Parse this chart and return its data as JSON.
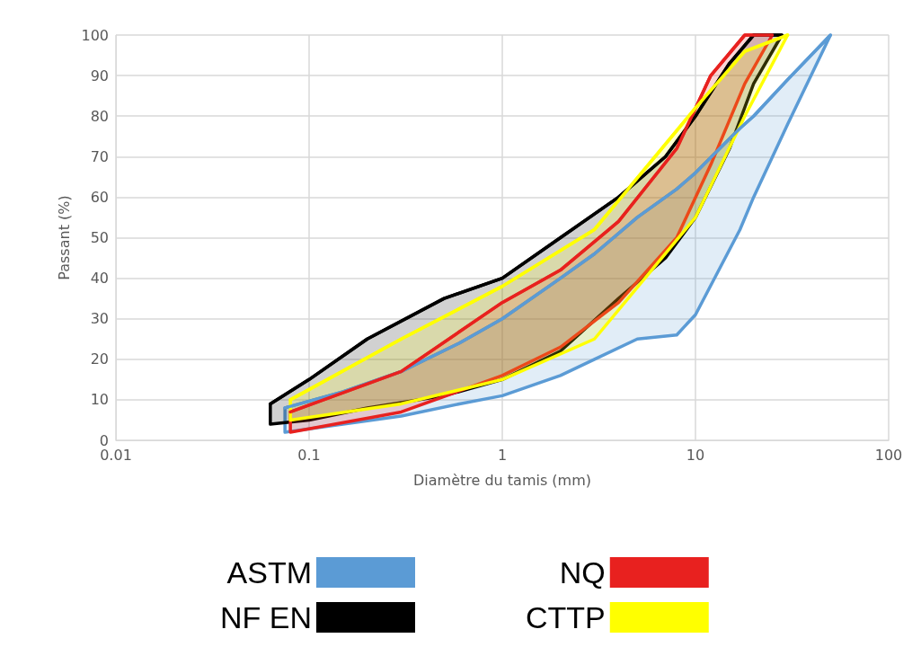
{
  "chart_data": {
    "type": "line",
    "xlabel": "Diamètre du tamis (mm)",
    "ylabel": "Passant (%)",
    "log": "x",
    "xlim": [
      0.01,
      100
    ],
    "xticks": [
      0.01,
      0.1,
      1,
      10,
      100
    ],
    "ylim": [
      0,
      100
    ],
    "yticks": [
      0,
      10,
      20,
      30,
      40,
      50,
      60,
      70,
      80,
      90,
      100
    ],
    "grid": true,
    "legend": "bottom",
    "marker": "none",
    "series": [
      {
        "name": "ASTM",
        "color": "#5b9bd5",
        "x": [
          0.075,
          0.15,
          0.3,
          0.6,
          1,
          2,
          3,
          5,
          8,
          10,
          17,
          20,
          30,
          50
        ],
        "values": [
          8,
          12,
          17,
          24,
          30,
          40,
          46,
          55,
          62,
          66,
          77,
          80,
          89,
          100
        ],
        "upper": [
          8,
          12,
          17,
          24,
          30,
          40,
          46,
          55,
          62,
          66,
          77,
          80,
          89,
          100
        ],
        "lower": [
          2,
          4,
          6,
          9,
          11,
          16,
          20,
          25,
          26,
          31,
          52,
          60,
          78,
          100
        ]
      },
      {
        "name": "NF EN",
        "color": "#000000",
        "x": [
          0.063,
          0.1,
          0.2,
          0.5,
          1,
          2,
          4,
          7,
          10,
          15,
          20,
          28
        ],
        "values": [
          9,
          15,
          25,
          35,
          40,
          50,
          60,
          70,
          80,
          93,
          100,
          100
        ],
        "upper": [
          9,
          15,
          25,
          35,
          40,
          50,
          60,
          70,
          80,
          93,
          100,
          100
        ],
        "lower": [
          4,
          5,
          8,
          11,
          15,
          22,
          35,
          45,
          55,
          72,
          88,
          100
        ]
      },
      {
        "name": "NQ",
        "color": "#e8211f",
        "x": [
          0.08,
          0.3,
          1,
          2,
          4,
          8,
          12,
          18,
          25
        ],
        "values": [
          7,
          17,
          34,
          42,
          54,
          72,
          90,
          100,
          100
        ],
        "upper": [
          7,
          17,
          34,
          42,
          54,
          72,
          90,
          100,
          100
        ],
        "lower": [
          2,
          7,
          16,
          23,
          34,
          50,
          68,
          88,
          100
        ]
      },
      {
        "name": "CTTP",
        "color": "#ffff00",
        "x": [
          0.08,
          0.3,
          1,
          3,
          10,
          18,
          30
        ],
        "values": [
          10,
          25,
          38,
          52,
          82,
          96,
          100
        ],
        "upper": [
          10,
          25,
          38,
          52,
          82,
          96,
          100
        ],
        "lower": [
          5,
          9,
          15,
          25,
          55,
          80,
          100
        ]
      }
    ]
  }
}
